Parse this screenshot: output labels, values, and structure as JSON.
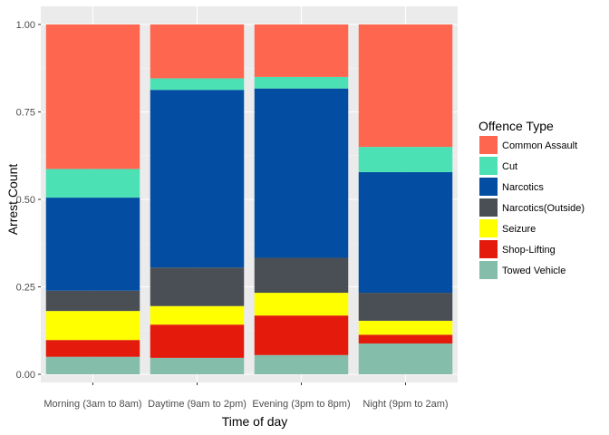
{
  "chart_data": {
    "type": "bar",
    "stacked": true,
    "normalized": true,
    "xlabel": "Time of day",
    "ylabel": "Arrest Count",
    "ylim": [
      0,
      1
    ],
    "yticks": [
      "0.00",
      "0.25",
      "0.50",
      "0.75",
      "1.00"
    ],
    "ytick_values": [
      0,
      0.25,
      0.5,
      0.75,
      1.0
    ],
    "grid": true,
    "legend_position": "right",
    "legend_title": "Offence Type",
    "categories": [
      "Morning (3am to 8am)",
      "Daytime (9am to 2pm)",
      "Evening (3pm to 8pm)",
      "Night (9pm to 2am)"
    ],
    "series": [
      {
        "name": "Towed Vehicle",
        "color": "#84BDAA",
        "values": [
          0.05,
          0.047,
          0.055,
          0.088
        ]
      },
      {
        "name": "Shop-Lifting",
        "color": "#E31A0C",
        "values": [
          0.048,
          0.095,
          0.113,
          0.025
        ]
      },
      {
        "name": "Seizure",
        "color": "#FFFF00",
        "values": [
          0.083,
          0.053,
          0.065,
          0.04
        ]
      },
      {
        "name": "Narcotics(Outside)",
        "color": "#4A4F55",
        "values": [
          0.058,
          0.11,
          0.1,
          0.08
        ]
      },
      {
        "name": "Narcotics",
        "color": "#034EA2",
        "values": [
          0.266,
          0.508,
          0.484,
          0.345
        ]
      },
      {
        "name": "Cut",
        "color": "#4BE1B4",
        "values": [
          0.082,
          0.033,
          0.033,
          0.072
        ]
      },
      {
        "name": "Common Assault",
        "color": "#FF6650",
        "values": [
          0.413,
          0.154,
          0.15,
          0.35
        ]
      }
    ]
  }
}
